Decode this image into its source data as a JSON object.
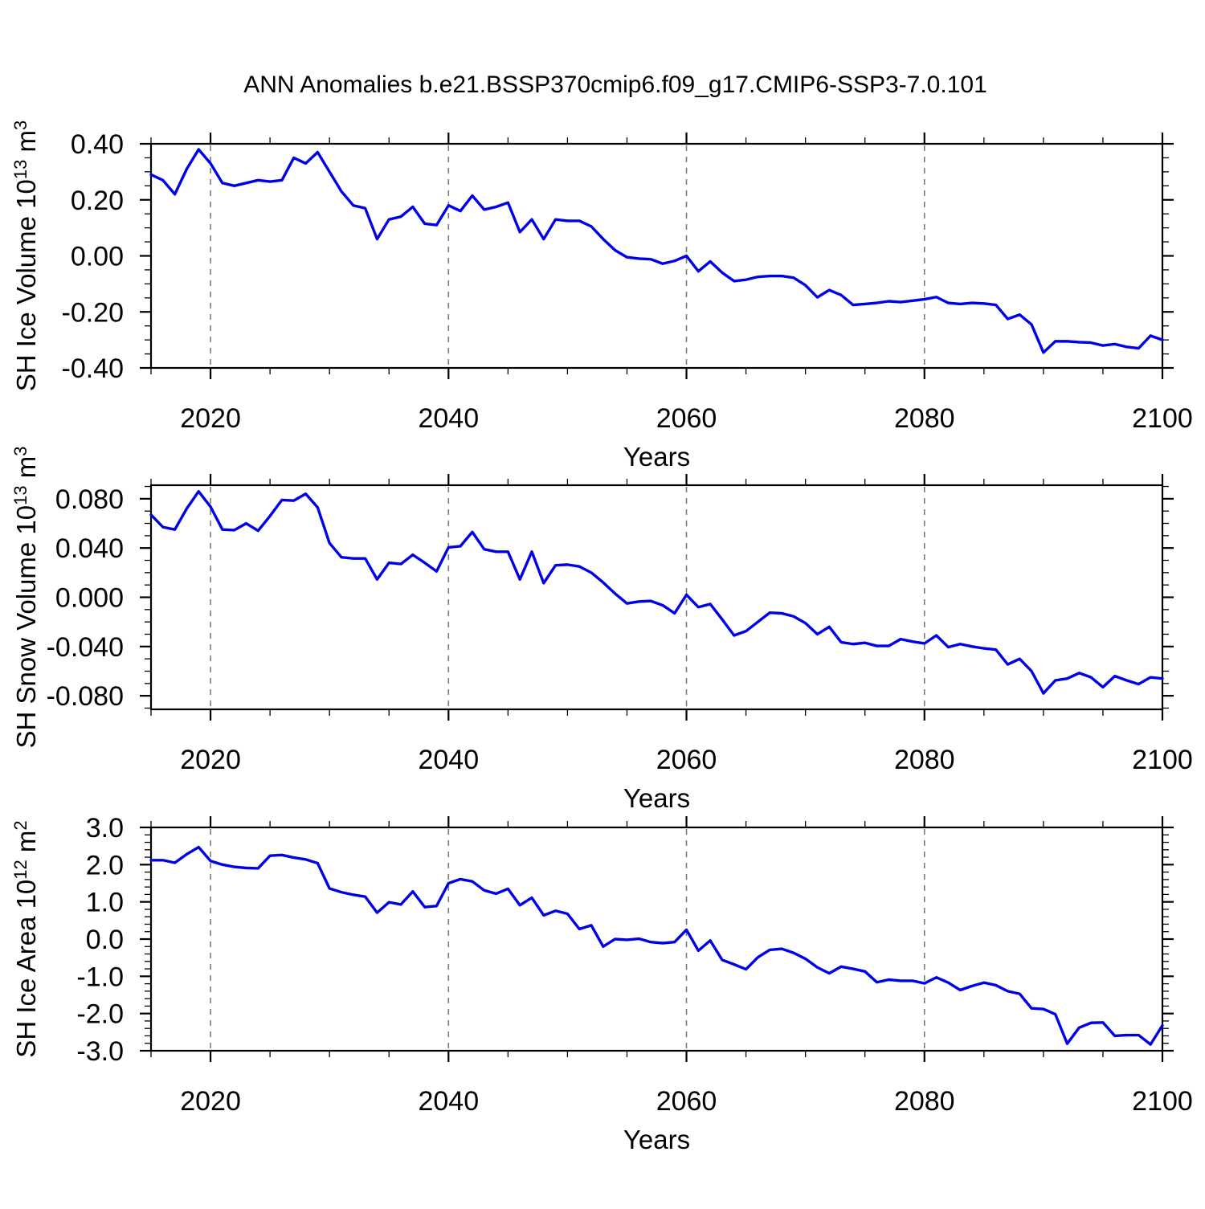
{
  "title": "ANN Anomalies b.e21.BSSP370cmip6.f09_g17.CMIP6-SSP3-7.0.101",
  "colors": {
    "line": "#0000e8",
    "grid": "#7a7a7a",
    "axis": "#000000",
    "background": "#ffffff"
  },
  "years": [
    2015,
    2016,
    2017,
    2018,
    2019,
    2020,
    2021,
    2022,
    2023,
    2024,
    2025,
    2026,
    2027,
    2028,
    2029,
    2030,
    2031,
    2032,
    2033,
    2034,
    2035,
    2036,
    2037,
    2038,
    2039,
    2040,
    2041,
    2042,
    2043,
    2044,
    2045,
    2046,
    2047,
    2048,
    2049,
    2050,
    2051,
    2052,
    2053,
    2054,
    2055,
    2056,
    2057,
    2058,
    2059,
    2060,
    2061,
    2062,
    2063,
    2064,
    2065,
    2066,
    2067,
    2068,
    2069,
    2070,
    2071,
    2072,
    2073,
    2074,
    2075,
    2076,
    2077,
    2078,
    2079,
    2080,
    2081,
    2082,
    2083,
    2084,
    2085,
    2086,
    2087,
    2088,
    2089,
    2090,
    2091,
    2092,
    2093,
    2094,
    2095,
    2096,
    2097,
    2098,
    2099,
    2100
  ],
  "chart_data": [
    {
      "type": "line",
      "name": "sh-ice-volume",
      "ylabel": "SH Ice Volume 10^13 m^3",
      "ylabel_parts": {
        "base": "SH Ice Volume 10",
        "exp": "13",
        "unit": " m",
        "unit_exp": "3"
      },
      "xlabel": "Years",
      "xlim": [
        2015,
        2100
      ],
      "ylim": [
        -0.4,
        0.4
      ],
      "xticks": {
        "major": [
          2020,
          2040,
          2060,
          2080,
          2100
        ],
        "labels": [
          "2020",
          "2040",
          "2060",
          "2080",
          "2100"
        ],
        "minor_step": 5
      },
      "yticks": {
        "major": [
          0.4,
          0.2,
          0.0,
          -0.2,
          -0.4
        ],
        "labels": [
          "0.40",
          "0.20",
          "0.00",
          "-0.20",
          "-0.40"
        ],
        "minor_step": 0.05
      },
      "gridlines_x": [
        2020,
        2040,
        2060,
        2080
      ],
      "grid": true,
      "legend": "none",
      "values": [
        0.29,
        0.27,
        0.22,
        0.31,
        0.38,
        0.33,
        0.26,
        0.25,
        0.26,
        0.27,
        0.265,
        0.27,
        0.35,
        0.33,
        0.37,
        0.3,
        0.23,
        0.18,
        0.17,
        0.06,
        0.13,
        0.14,
        0.175,
        0.115,
        0.11,
        0.18,
        0.16,
        0.215,
        0.165,
        0.175,
        0.19,
        0.085,
        0.13,
        0.06,
        0.13,
        0.125,
        0.125,
        0.105,
        0.06,
        0.02,
        -0.005,
        -0.01,
        -0.012,
        -0.028,
        -0.018,
        0.0,
        -0.055,
        -0.02,
        -0.06,
        -0.09,
        -0.085,
        -0.075,
        -0.072,
        -0.072,
        -0.078,
        -0.105,
        -0.148,
        -0.122,
        -0.14,
        -0.175,
        -0.172,
        -0.168,
        -0.162,
        -0.165,
        -0.16,
        -0.155,
        -0.147,
        -0.168,
        -0.172,
        -0.168,
        -0.17,
        -0.175,
        -0.225,
        -0.21,
        -0.245,
        -0.345,
        -0.305,
        -0.305,
        -0.308,
        -0.31,
        -0.32,
        -0.315,
        -0.325,
        -0.33,
        -0.285,
        -0.3
      ]
    },
    {
      "type": "line",
      "name": "sh-snow-volume",
      "ylabel": "SH Snow Volume 10^13 m^3",
      "ylabel_parts": {
        "base": "SH Snow Volume 10",
        "exp": "13",
        "unit": " m",
        "unit_exp": "3"
      },
      "xlabel": "Years",
      "xlim": [
        2015,
        2100
      ],
      "ylim": [
        -0.091,
        0.091
      ],
      "xticks": {
        "major": [
          2020,
          2040,
          2060,
          2080,
          2100
        ],
        "labels": [
          "2020",
          "2040",
          "2060",
          "2080",
          "2100"
        ],
        "minor_step": 5
      },
      "yticks": {
        "major": [
          0.08,
          0.04,
          0.0,
          -0.04,
          -0.08
        ],
        "labels": [
          "0.080",
          "0.040",
          "0.000",
          "-0.040",
          "-0.080"
        ],
        "minor_step": 0.01
      },
      "gridlines_x": [
        2020,
        2040,
        2060,
        2080
      ],
      "grid": true,
      "legend": "none",
      "values": [
        0.067,
        0.057,
        0.055,
        0.072,
        0.086,
        0.0735,
        0.055,
        0.0545,
        0.06,
        0.054,
        0.066,
        0.079,
        0.0785,
        0.084,
        0.073,
        0.044,
        0.0325,
        0.0315,
        0.0315,
        0.0145,
        0.028,
        0.027,
        0.0345,
        0.028,
        0.021,
        0.0405,
        0.0415,
        0.053,
        0.039,
        0.037,
        0.037,
        0.0145,
        0.037,
        0.0115,
        0.026,
        0.0265,
        0.025,
        0.02,
        0.012,
        0.003,
        -0.005,
        -0.0035,
        -0.003,
        -0.0065,
        -0.013,
        0.002,
        -0.008,
        -0.0055,
        -0.018,
        -0.031,
        -0.0275,
        -0.02,
        -0.0125,
        -0.013,
        -0.0155,
        -0.021,
        -0.03,
        -0.024,
        -0.0365,
        -0.038,
        -0.037,
        -0.0395,
        -0.0395,
        -0.034,
        -0.036,
        -0.0375,
        -0.031,
        -0.0405,
        -0.038,
        -0.04,
        -0.0415,
        -0.0425,
        -0.0545,
        -0.05,
        -0.06,
        -0.078,
        -0.0675,
        -0.066,
        -0.0615,
        -0.065,
        -0.073,
        -0.064,
        -0.0675,
        -0.0705,
        -0.065,
        -0.066
      ]
    },
    {
      "type": "line",
      "name": "sh-ice-area",
      "ylabel": "SH Ice Area 10^12 m^2",
      "ylabel_parts": {
        "base": "SH Ice Area 10",
        "exp": "12",
        "unit": " m",
        "unit_exp": "2"
      },
      "xlabel": "Years",
      "xlim": [
        2015,
        2100
      ],
      "ylim": [
        -3.0,
        3.0
      ],
      "xticks": {
        "major": [
          2020,
          2040,
          2060,
          2080,
          2100
        ],
        "labels": [
          "2020",
          "2040",
          "2060",
          "2080",
          "2100"
        ],
        "minor_step": 5
      },
      "yticks": {
        "major": [
          3.0,
          2.0,
          1.0,
          0.0,
          -1.0,
          -2.0,
          -3.0
        ],
        "labels": [
          "3.0",
          "2.0",
          "1.0",
          "0.0",
          "-1.0",
          "-2.0",
          "-3.0"
        ],
        "minor_step": 0.2
      },
      "gridlines_x": [
        2020,
        2040,
        2060,
        2080
      ],
      "grid": true,
      "legend": "none",
      "values": [
        2.12,
        2.12,
        2.05,
        2.28,
        2.47,
        2.1,
        2.0,
        1.94,
        1.91,
        1.9,
        2.24,
        2.26,
        2.19,
        2.14,
        2.04,
        1.36,
        1.26,
        1.19,
        1.14,
        0.71,
        0.99,
        0.93,
        1.28,
        0.86,
        0.89,
        1.5,
        1.61,
        1.55,
        1.31,
        1.22,
        1.35,
        0.91,
        1.11,
        0.64,
        0.76,
        0.68,
        0.27,
        0.37,
        -0.2,
        0.0,
        -0.02,
        0.01,
        -0.08,
        -0.11,
        -0.08,
        0.25,
        -0.31,
        -0.04,
        -0.56,
        -0.68,
        -0.81,
        -0.49,
        -0.29,
        -0.26,
        -0.37,
        -0.53,
        -0.76,
        -0.92,
        -0.74,
        -0.8,
        -0.87,
        -1.16,
        -1.09,
        -1.12,
        -1.12,
        -1.19,
        -1.03,
        -1.17,
        -1.37,
        -1.26,
        -1.17,
        -1.24,
        -1.4,
        -1.47,
        -1.86,
        -1.88,
        -2.02,
        -2.81,
        -2.38,
        -2.25,
        -2.24,
        -2.6,
        -2.58,
        -2.58,
        -2.83,
        -2.32
      ]
    }
  ]
}
